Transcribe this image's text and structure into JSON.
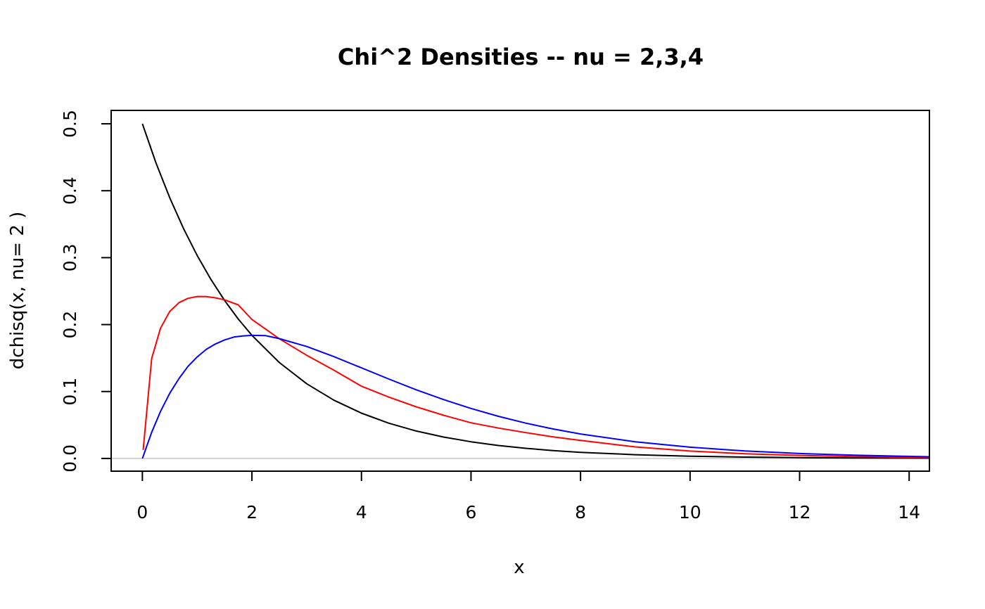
{
  "chart_data": {
    "type": "line",
    "title": "Chi^2 Densities -- nu = 2,3,4",
    "xlabel": "x",
    "ylabel": "dchisq(x, nu= 2 )",
    "xlim": [
      -0.57,
      14.37
    ],
    "ylim": [
      -0.019,
      0.52
    ],
    "xticks": [
      0,
      2,
      4,
      6,
      8,
      10,
      12,
      14
    ],
    "yticks": [
      0.0,
      0.1,
      0.2,
      0.3,
      0.4,
      0.5
    ],
    "xtick_labels": [
      "0",
      "2",
      "4",
      "6",
      "8",
      "10",
      "12",
      "14"
    ],
    "ytick_labels": [
      "0.0",
      "0.1",
      "0.2",
      "0.3",
      "0.4",
      "0.5"
    ],
    "grid": false,
    "legend": "none",
    "baseline": {
      "y": 0,
      "color": "#d3d3d3"
    },
    "series": [
      {
        "color": "#000000",
        "x": [
          0,
          0.25,
          0.5,
          0.75,
          1,
          1.25,
          1.5,
          1.75,
          2,
          2.5,
          3,
          3.5,
          4,
          4.5,
          5,
          5.5,
          6,
          6.5,
          7,
          7.5,
          8,
          9,
          10,
          11,
          12,
          13,
          14.37
        ],
        "y": [
          0.5,
          0.4412,
          0.3894,
          0.3436,
          0.3033,
          0.2676,
          0.2362,
          0.2084,
          0.1839,
          0.1433,
          0.1116,
          0.0869,
          0.0677,
          0.0527,
          0.041,
          0.032,
          0.0249,
          0.0194,
          0.0151,
          0.0118,
          0.0092,
          0.0056,
          0.0034,
          0.002,
          0.0012,
          0.0008,
          0.0004
        ]
      },
      {
        "color": "#ff0000",
        "x": [
          0.015,
          0.17,
          0.33,
          0.5,
          0.67,
          0.83,
          1,
          1.17,
          1.33,
          1.5,
          1.75,
          2,
          2.5,
          3,
          3.5,
          4,
          4.5,
          5,
          5.5,
          6,
          6.5,
          7,
          7.5,
          8,
          9,
          10,
          11,
          12,
          13,
          14.37
        ],
        "y": [
          0.0127,
          0.1494,
          0.1945,
          0.2197,
          0.2328,
          0.2392,
          0.242,
          0.2419,
          0.24,
          0.2371,
          0.2295,
          0.2076,
          0.1788,
          0.1542,
          0.1318,
          0.1079,
          0.0916,
          0.0771,
          0.0645,
          0.0533,
          0.0454,
          0.0386,
          0.0323,
          0.027,
          0.0172,
          0.0111,
          0.0071,
          0.0045,
          0.0028,
          0.0013
        ]
      },
      {
        "color": "#0000ff",
        "x": [
          0,
          0.17,
          0.33,
          0.5,
          0.67,
          0.83,
          1,
          1.17,
          1.33,
          1.5,
          1.67,
          1.83,
          2,
          2.25,
          2.5,
          3,
          3.5,
          4,
          4.5,
          5,
          5.5,
          6,
          6.5,
          7,
          7.5,
          8,
          9,
          10,
          11,
          12,
          13,
          14.37
        ],
        "y": [
          0,
          0.0391,
          0.0702,
          0.0974,
          0.1196,
          0.1373,
          0.1516,
          0.1632,
          0.1709,
          0.1771,
          0.1814,
          0.183,
          0.1839,
          0.1835,
          0.1791,
          0.1673,
          0.1521,
          0.1353,
          0.1186,
          0.1026,
          0.088,
          0.0747,
          0.063,
          0.0528,
          0.044,
          0.0366,
          0.0249,
          0.0168,
          0.0112,
          0.0074,
          0.0048,
          0.0025
        ]
      }
    ]
  }
}
